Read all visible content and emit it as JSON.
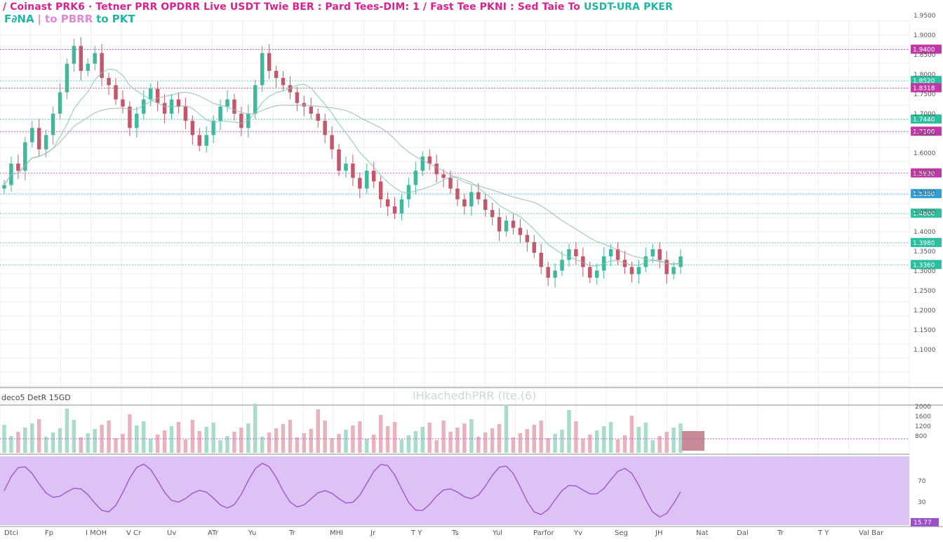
{
  "header": {
    "title_part1": "/ Coinast PRK6 · Tetner PRR OPDRR  Live USDT Twie BER : Pard Tees-DIM: 1 / Fast Tee PKNI : Sed Taie To ",
    "title_part2": "USDT-URA PKER",
    "subtitle_a": "F∂NA",
    "subtitle_b": "| to PBRR",
    "subtitle_c": "to PKT"
  },
  "volume_label": "deco5 DetR 15GD",
  "watermark": "IHkachedhPRR (Ite.(6)",
  "colors": {
    "up": "#3fb89c",
    "down": "#c4586a",
    "teal_line": "#2bbf9f",
    "magenta_line": "#b85cbf",
    "rsi_fill": "#dcc2f5",
    "rsi_line": "#9b4ec9",
    "grid": "#eeeeee"
  },
  "chart_data": {
    "type": "candlestick",
    "title": "",
    "price_axis": {
      "ylim": [
        1.0,
        2.0
      ],
      "grid": true
    },
    "time_axis_labels": [
      "Dtci",
      "Fp",
      "I MOH",
      "V Cr",
      "Uv",
      "ATr",
      "Yu",
      "Tr",
      "MHI",
      "Jr",
      "T Y",
      "Ts",
      "Yul",
      "Parfor",
      "Yv",
      "Seg",
      "JH",
      "Nat",
      "Dal",
      "Tr",
      "T Y",
      "Val Bar"
    ],
    "price_axis_labels": [
      "1.9500",
      "1.9000",
      "1.8500",
      "1.8000",
      "1.7500",
      "1.7000",
      "1.6500",
      "1.6000",
      "1.5500",
      "1.5000",
      "1.4500",
      "1.4000",
      "1.3500",
      "1.3000",
      "1.2500",
      "1.2000",
      "1.1500",
      "1.1000"
    ],
    "price_tags": [
      {
        "text": "1.9400",
        "value": 1.94,
        "color": "#c236a8"
      },
      {
        "text": "1.8520",
        "value": 1.852,
        "color": "#2bbf9f"
      },
      {
        "text": "1.8318",
        "value": 1.8318,
        "color": "#c236a8"
      },
      {
        "text": "1.7440",
        "value": 1.744,
        "color": "#2bbf9f"
      },
      {
        "text": "1.7100",
        "value": 1.71,
        "color": "#c236a8"
      },
      {
        "text": "1.5930",
        "value": 1.593,
        "color": "#c236a8"
      },
      {
        "text": "1.5350",
        "value": 1.535,
        "color": "#2d9fd6"
      },
      {
        "text": "1.4800",
        "value": 1.48,
        "color": "#2bbf9f"
      },
      {
        "text": "1.3980",
        "value": 1.398,
        "color": "#2bbf9f"
      },
      {
        "text": "1.3360",
        "value": 1.336,
        "color": "#2bbf9f"
      }
    ],
    "volume_axis_labels": [
      "2000",
      "1600",
      "1200",
      "800"
    ],
    "rsi_axis_labels": [
      "70",
      "30"
    ],
    "rsi_tag": "15.77",
    "closes": [
      1.56,
      1.62,
      1.6,
      1.68,
      1.72,
      1.66,
      1.7,
      1.76,
      1.82,
      1.9,
      1.95,
      1.88,
      1.9,
      1.93,
      1.86,
      1.84,
      1.8,
      1.78,
      1.72,
      1.76,
      1.8,
      1.83,
      1.79,
      1.76,
      1.8,
      1.78,
      1.74,
      1.7,
      1.67,
      1.7,
      1.74,
      1.78,
      1.8,
      1.76,
      1.72,
      1.76,
      1.84,
      1.93,
      1.88,
      1.86,
      1.84,
      1.82,
      1.79,
      1.78,
      1.76,
      1.74,
      1.7,
      1.66,
      1.6,
      1.62,
      1.58,
      1.55,
      1.6,
      1.57,
      1.52,
      1.5,
      1.48,
      1.52,
      1.56,
      1.6,
      1.64,
      1.62,
      1.59,
      1.58,
      1.55,
      1.52,
      1.5,
      1.54,
      1.52,
      1.49,
      1.47,
      1.43,
      1.46,
      1.44,
      1.42,
      1.4,
      1.37,
      1.33,
      1.3,
      1.32,
      1.35,
      1.38,
      1.36,
      1.33,
      1.3,
      1.32,
      1.36,
      1.38,
      1.35,
      1.33,
      1.31,
      1.33,
      1.36,
      1.38,
      1.35,
      1.31,
      1.33,
      1.36
    ]
  }
}
